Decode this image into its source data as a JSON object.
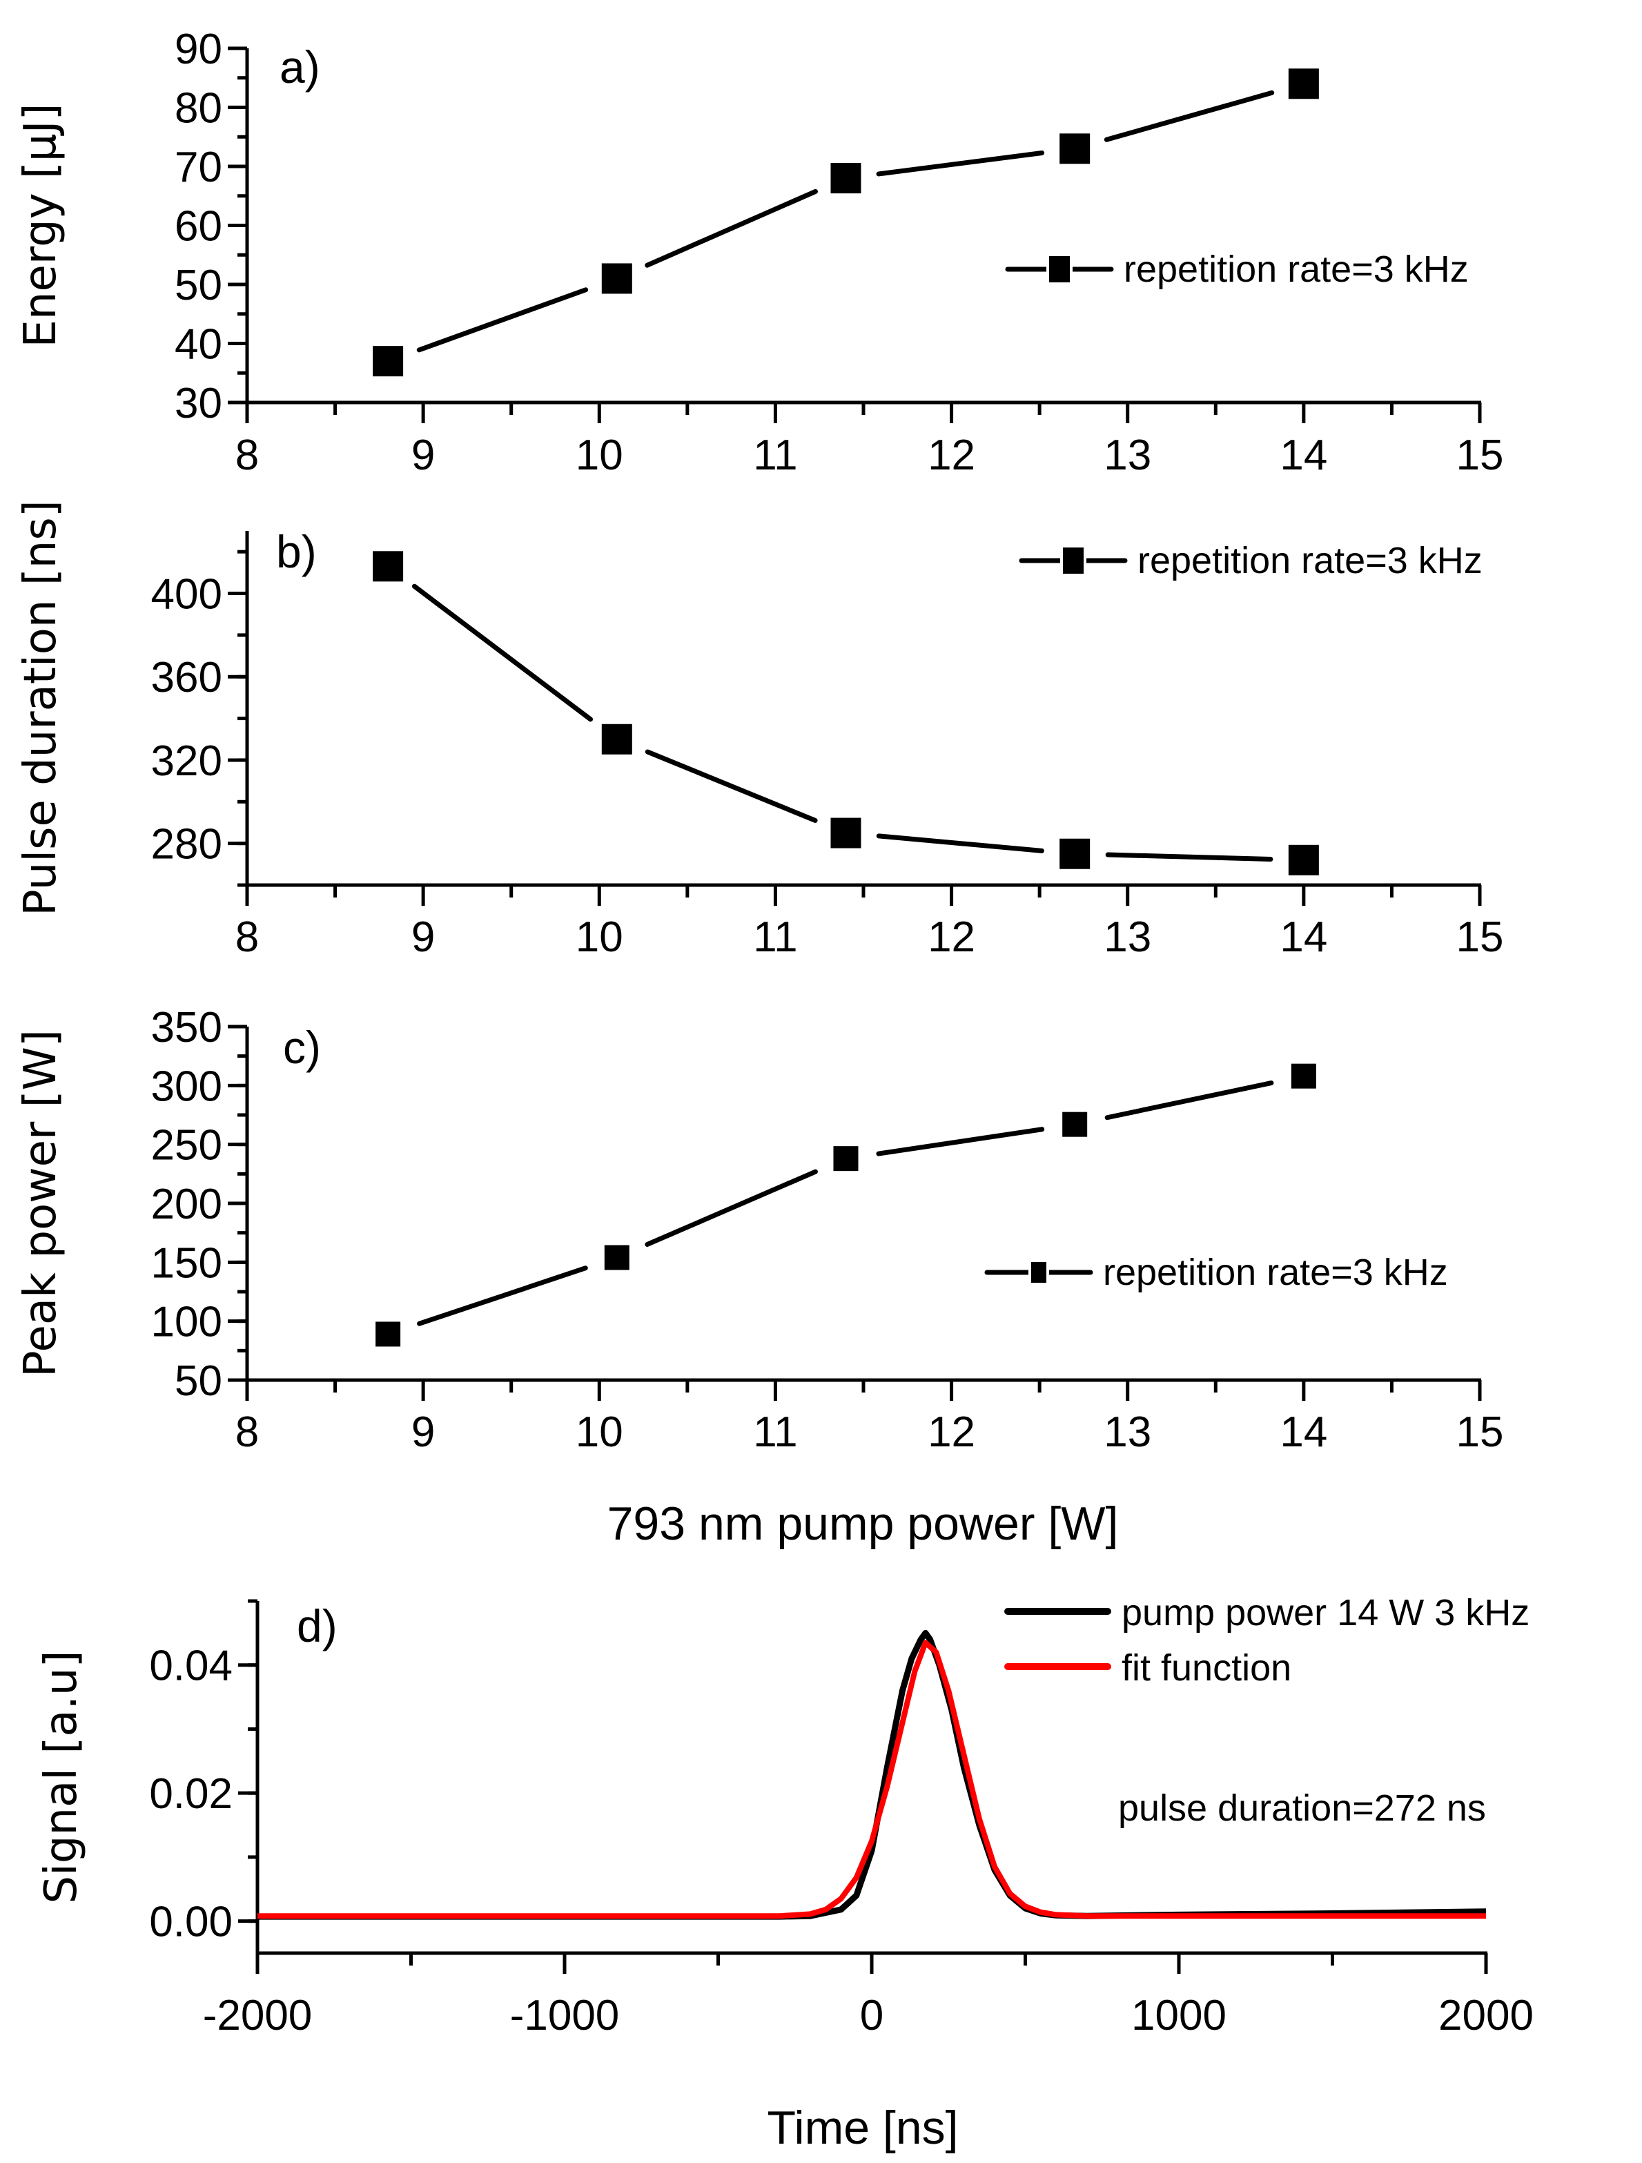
{
  "chart_data": [
    {
      "id": "a",
      "type": "line",
      "panel_label": "a)",
      "title": "",
      "xlabel": "",
      "ylabel": "Energy [µJ]",
      "xlim": [
        8,
        15
      ],
      "ylim": [
        30,
        90
      ],
      "xticks": [
        8,
        9,
        10,
        11,
        12,
        13,
        14,
        15
      ],
      "yticks": [
        30,
        40,
        50,
        60,
        70,
        80,
        90
      ],
      "grid": false,
      "legend_position": "right-middle",
      "series": [
        {
          "name": "repetition rate=3 kHz",
          "marker": "square",
          "color": "#000000",
          "x": [
            8.8,
            10.1,
            11.4,
            12.7,
            14.0
          ],
          "y": [
            37,
            51,
            68,
            73,
            84
          ]
        }
      ]
    },
    {
      "id": "b",
      "type": "line",
      "panel_label": "b)",
      "title": "",
      "xlabel": "",
      "ylabel": "Pulse duration [ns]",
      "xlim": [
        8,
        15
      ],
      "ylim": [
        260,
        430
      ],
      "xticks": [
        8,
        9,
        10,
        11,
        12,
        13,
        14,
        15
      ],
      "yticks": [
        280,
        320,
        360,
        400
      ],
      "grid": false,
      "legend_position": "top-right",
      "series": [
        {
          "name": "repetition rate=3 kHz",
          "marker": "square",
          "color": "#000000",
          "x": [
            8.8,
            10.1,
            11.4,
            12.7,
            14.0
          ],
          "y": [
            413,
            330,
            285,
            275,
            272
          ]
        }
      ]
    },
    {
      "id": "c",
      "type": "line",
      "panel_label": "c)",
      "title": "",
      "xlabel": "793 nm pump power  [W]",
      "ylabel": "Peak power [W]",
      "xlim": [
        8,
        15
      ],
      "ylim": [
        50,
        350
      ],
      "xticks": [
        8,
        9,
        10,
        11,
        12,
        13,
        14,
        15
      ],
      "yticks": [
        50,
        100,
        150,
        200,
        250,
        300,
        350
      ],
      "grid": false,
      "legend_position": "right-middle",
      "series": [
        {
          "name": "repetition rate=3 kHz",
          "marker": "square",
          "color": "#000000",
          "x": [
            8.8,
            10.1,
            11.4,
            12.7,
            14.0
          ],
          "y": [
            89,
            154,
            238,
            267,
            308
          ]
        }
      ]
    },
    {
      "id": "d",
      "type": "line",
      "panel_label": "d)",
      "title": "",
      "xlabel": "Time [ns]",
      "ylabel": "Signal [a.u]",
      "xlim": [
        -2000,
        2000
      ],
      "ylim": [
        -0.005,
        0.05
      ],
      "xticks": [
        -2000,
        -1000,
        0,
        1000,
        2000
      ],
      "xtick_labels": [
        "-2000",
        "-1000",
        "0",
        "1000",
        "2000"
      ],
      "yticks": [
        0.0,
        0.02,
        0.04
      ],
      "ytick_labels": [
        "0.00",
        "0.02",
        "0.04"
      ],
      "grid": false,
      "legend_position": "top-right",
      "annotation": "pulse duration=272 ns",
      "series": [
        {
          "name": "pump power 14 W 3 kHz",
          "color": "#000000",
          "x": [
            -2000,
            -1000,
            -300,
            -200,
            -100,
            -50,
            0,
            50,
            100,
            130,
            160,
            175,
            190,
            220,
            260,
            300,
            350,
            400,
            450,
            500,
            550,
            600,
            700,
            1000,
            1500,
            2000
          ],
          "y": [
            0.0007,
            0.0007,
            0.0007,
            0.0008,
            0.0018,
            0.004,
            0.011,
            0.024,
            0.036,
            0.041,
            0.044,
            0.045,
            0.044,
            0.04,
            0.033,
            0.024,
            0.015,
            0.008,
            0.004,
            0.002,
            0.0012,
            0.0009,
            0.0008,
            0.001,
            0.0012,
            0.0015
          ]
        },
        {
          "name": "fit function",
          "color": "#ff0000",
          "x": [
            -2000,
            -1000,
            -300,
            -200,
            -150,
            -100,
            -50,
            0,
            50,
            100,
            140,
            175,
            210,
            250,
            300,
            350,
            400,
            450,
            500,
            550,
            600,
            700,
            1000,
            1500,
            2000
          ],
          "y": [
            0.0008,
            0.0008,
            0.0008,
            0.0011,
            0.0018,
            0.0035,
            0.0068,
            0.0125,
            0.021,
            0.031,
            0.039,
            0.0435,
            0.042,
            0.036,
            0.026,
            0.016,
            0.0085,
            0.0043,
            0.0023,
            0.0014,
            0.001,
            0.0008,
            0.0008,
            0.0008,
            0.0008
          ]
        }
      ]
    }
  ]
}
